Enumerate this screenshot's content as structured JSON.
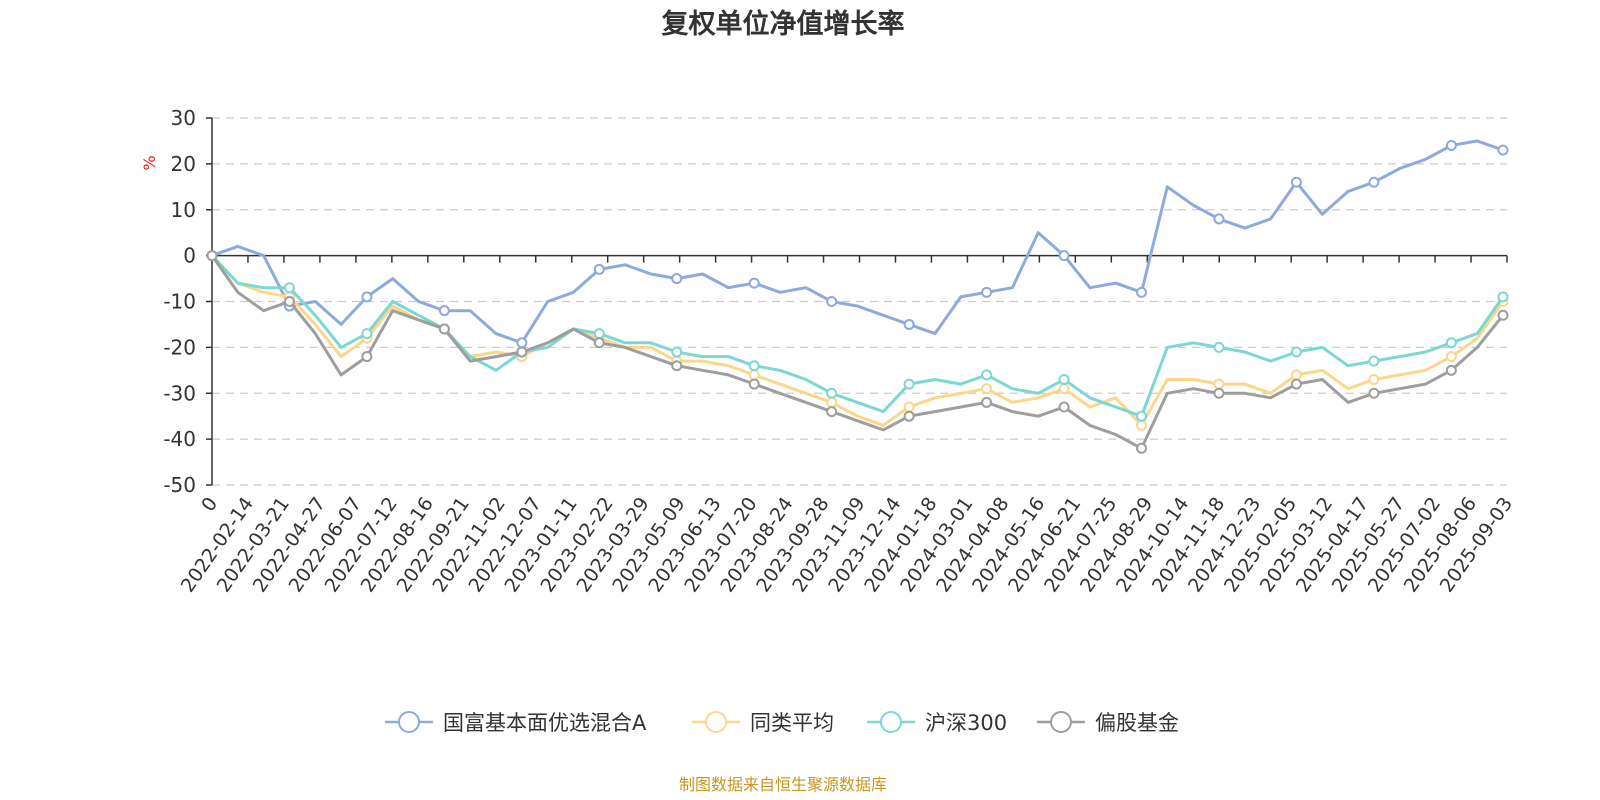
{
  "chart_data": {
    "type": "line",
    "title": "复权单位净值增长率",
    "unit_label": "%",
    "source": "制图数据来自恒生聚源数据库",
    "ylim": [
      -50,
      30
    ],
    "yticks": [
      30,
      20,
      10,
      0,
      -10,
      -20,
      -30,
      -40,
      -50
    ],
    "grid": "horizontal dashed",
    "legend_position": "bottom",
    "xticks": [
      "0",
      "2022-02-14",
      "2022-03-21",
      "2022-04-27",
      "2022-06-07",
      "2022-07-12",
      "2022-08-16",
      "2022-09-21",
      "2022-11-02",
      "2022-12-07",
      "2023-01-11",
      "2023-02-22",
      "2023-03-29",
      "2023-05-09",
      "2023-06-13",
      "2023-07-20",
      "2023-08-24",
      "2023-09-28",
      "2023-11-09",
      "2023-12-14",
      "2024-01-18",
      "2024-03-01",
      "2024-04-08",
      "2024-05-16",
      "2024-06-21",
      "2024-07-25",
      "2024-08-29",
      "2024-10-14",
      "2024-11-18",
      "2024-12-23",
      "2025-02-05",
      "2025-03-12",
      "2025-04-17",
      "2025-05-27",
      "2025-07-02",
      "2025-08-06",
      "2025-09-03"
    ],
    "series": [
      {
        "name": "国富基本面优选混合A",
        "color": "#8eaadc",
        "values": [
          0,
          2,
          0,
          -11,
          -10,
          -15,
          -9,
          -5,
          -10,
          -12,
          -12,
          -17,
          -19,
          -10,
          -8,
          -3,
          -2,
          -4,
          -5,
          -4,
          -7,
          -6,
          -8,
          -7,
          -10,
          -11,
          -13,
          -15,
          -17,
          -9,
          -8,
          -7,
          5,
          0,
          -7,
          -6,
          -8,
          15,
          11,
          8,
          6,
          8,
          16,
          9,
          14,
          16,
          19,
          21,
          24,
          25,
          23
        ]
      },
      {
        "name": "同类平均",
        "color": "#fcd689",
        "values": [
          0,
          -6,
          -8,
          -9,
          -15,
          -22,
          -18,
          -11,
          -14,
          -16,
          -22,
          -21,
          -22,
          -19,
          -16,
          -18,
          -20,
          -20,
          -23,
          -23,
          -24,
          -26,
          -28,
          -30,
          -32,
          -35,
          -37,
          -33,
          -31,
          -30,
          -29,
          -32,
          -31,
          -29,
          -33,
          -31,
          -37,
          -27,
          -27,
          -28,
          -28,
          -30,
          -26,
          -25,
          -29,
          -27,
          -26,
          -25,
          -22,
          -18,
          -10
        ]
      },
      {
        "name": "沪深300",
        "color": "#7dd7d3",
        "values": [
          0,
          -6,
          -7,
          -7,
          -13,
          -20,
          -17,
          -10,
          -13,
          -16,
          -22,
          -25,
          -21,
          -20,
          -16,
          -17,
          -19,
          -19,
          -21,
          -22,
          -22,
          -24,
          -25,
          -27,
          -30,
          -32,
          -34,
          -28,
          -27,
          -28,
          -26,
          -29,
          -30,
          -27,
          -31,
          -33,
          -35,
          -20,
          -19,
          -20,
          -21,
          -23,
          -21,
          -20,
          -24,
          -23,
          -22,
          -21,
          -19,
          -17,
          -9
        ]
      },
      {
        "name": "偏股基金",
        "color": "#9e9e9e",
        "values": [
          0,
          -8,
          -12,
          -10,
          -17,
          -26,
          -22,
          -12,
          -14,
          -16,
          -23,
          -22,
          -21,
          -19,
          -16,
          -19,
          -20,
          -22,
          -24,
          -25,
          -26,
          -28,
          -30,
          -32,
          -34,
          -36,
          -38,
          -35,
          -34,
          -33,
          -32,
          -34,
          -35,
          -33,
          -37,
          -39,
          -42,
          -30,
          -29,
          -30,
          -30,
          -31,
          -28,
          -27,
          -32,
          -30,
          -29,
          -28,
          -25,
          -20,
          -13
        ]
      }
    ]
  }
}
